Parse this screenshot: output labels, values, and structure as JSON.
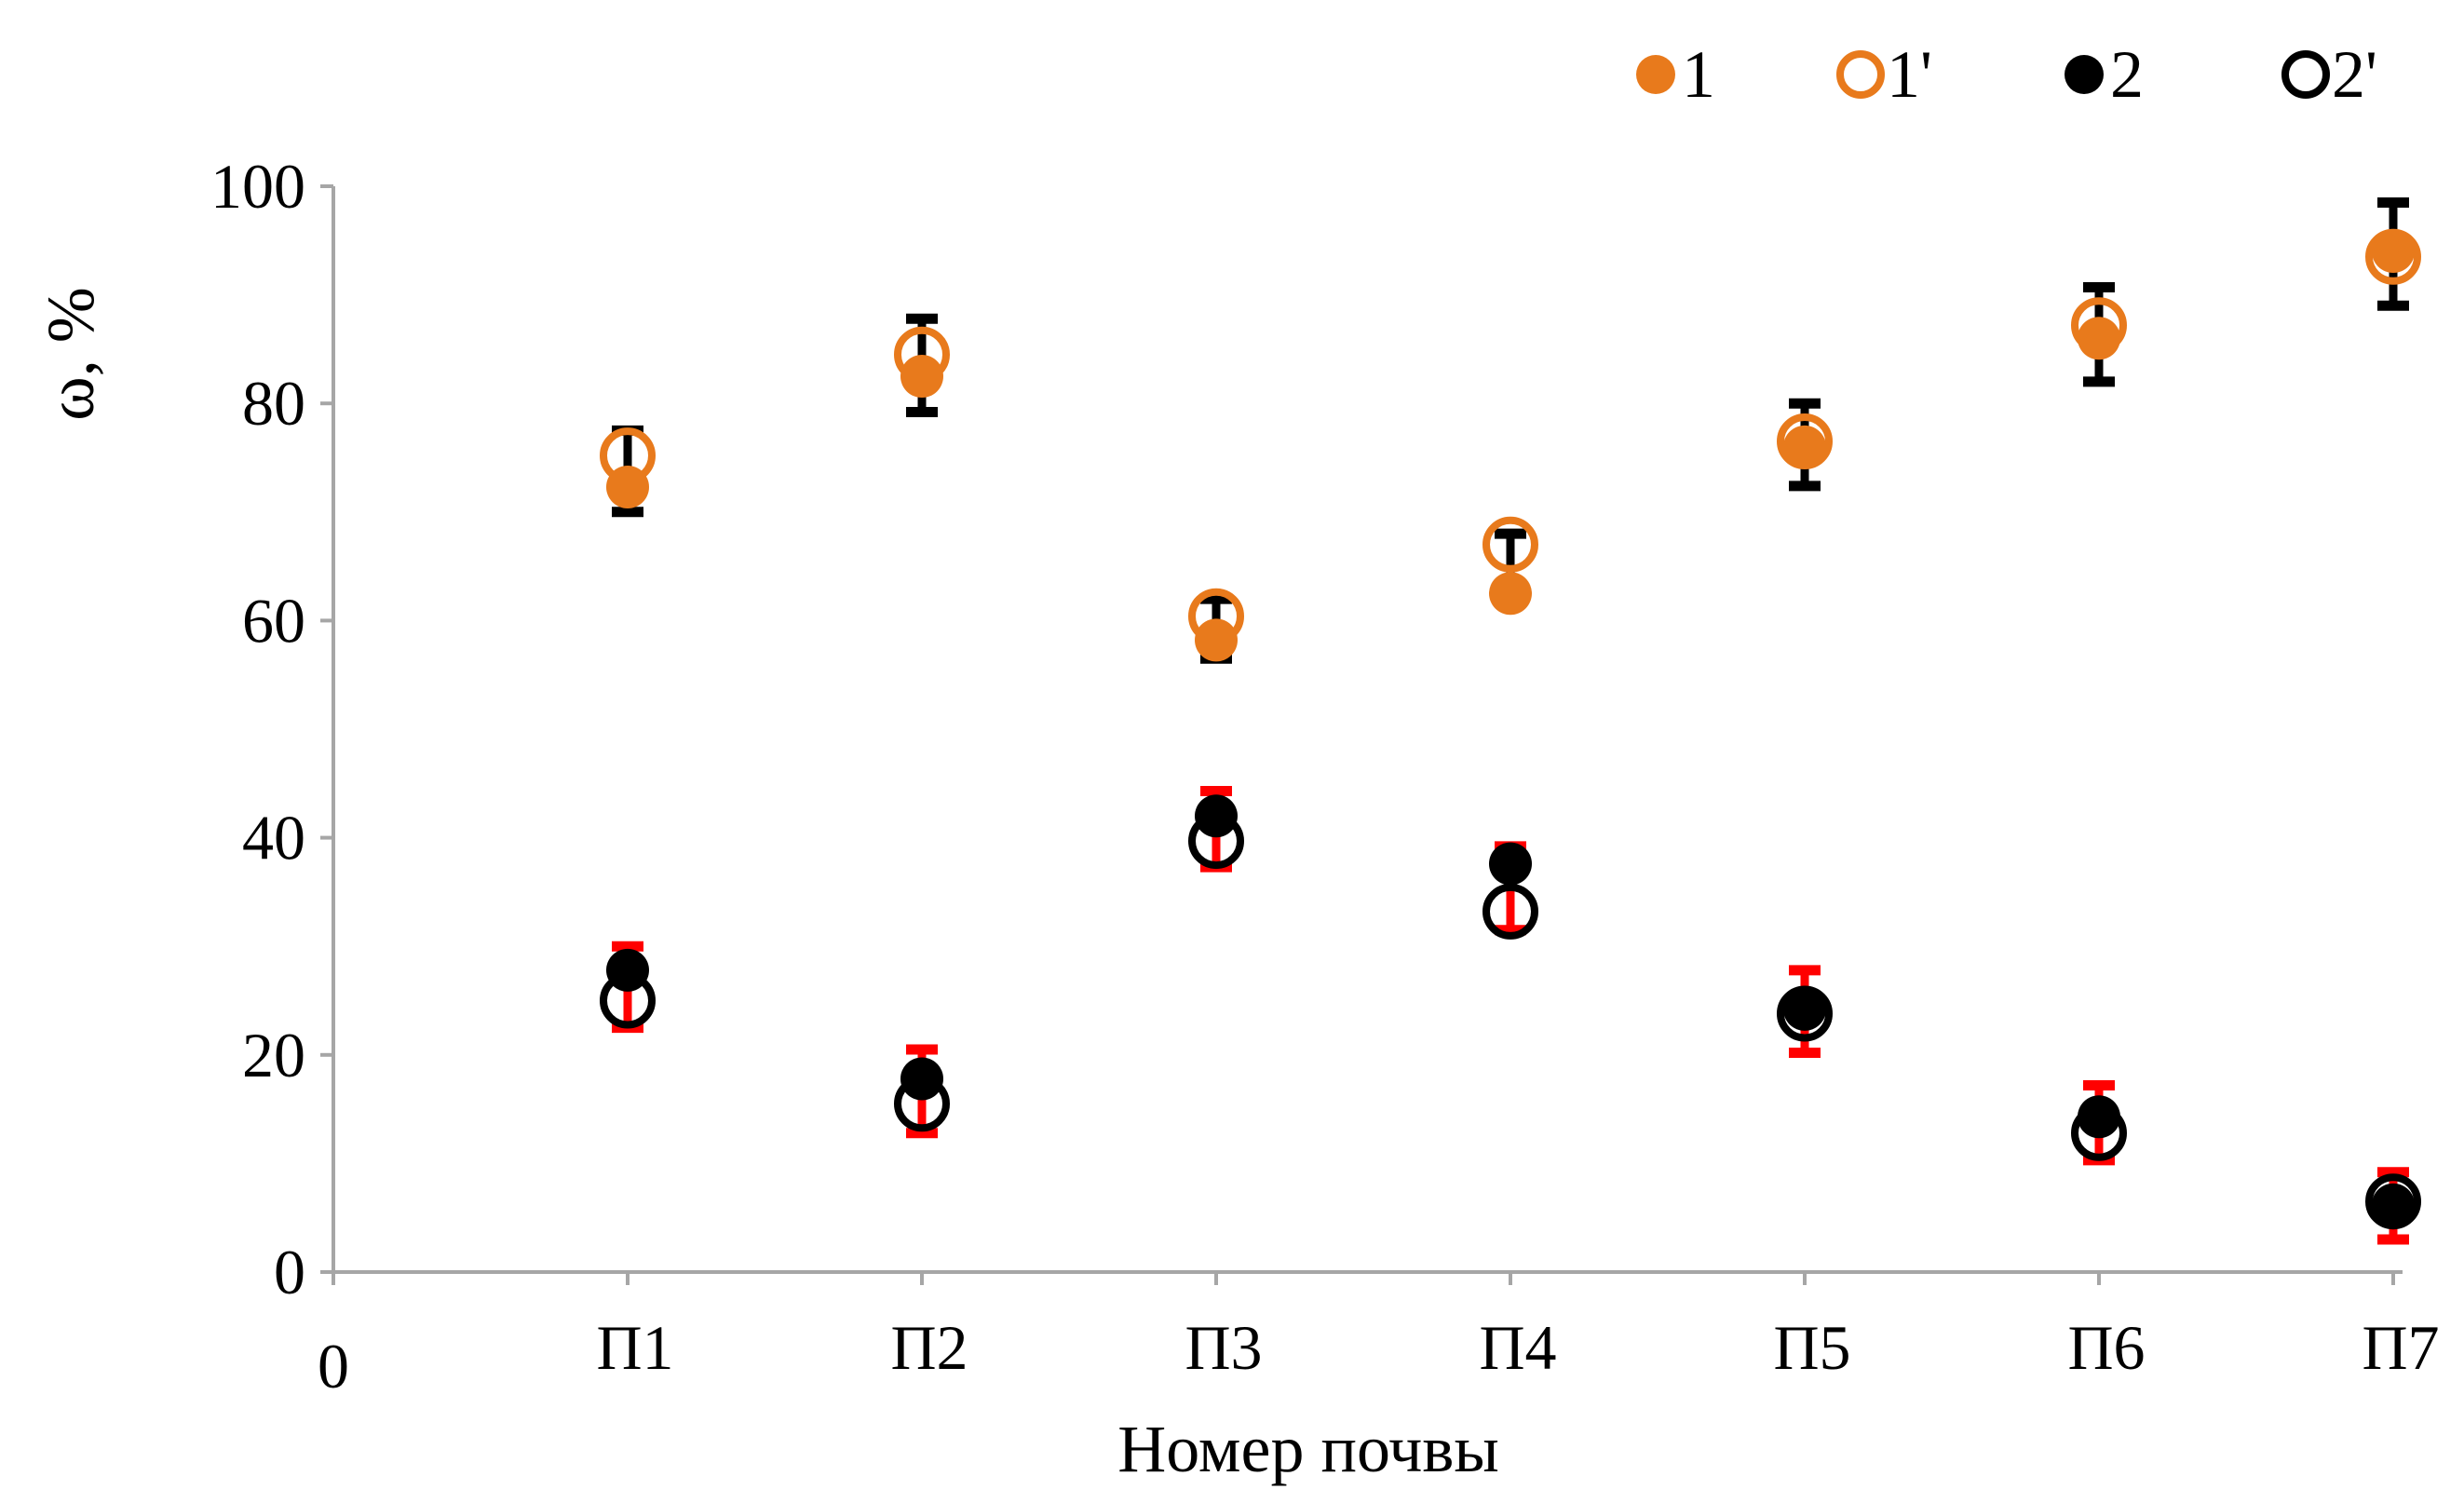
{
  "chart_data": {
    "type": "scatter",
    "title": "",
    "xlabel": "Номер почвы",
    "ylabel": "ω, %",
    "ylim": [
      0,
      100
    ],
    "yticks": [
      0,
      20,
      40,
      60,
      80,
      100
    ],
    "x_origin_label": "0",
    "categories": [
      "П1",
      "П2",
      "П3",
      "П4",
      "П5",
      "П6",
      "П7"
    ],
    "grid": false,
    "legend_position": "top-right",
    "colors": {
      "orange": "#E87A1C",
      "black": "#000000",
      "red": "#FF0000",
      "axis": "#A6A6A6"
    },
    "series": [
      {
        "name": "1",
        "marker": "filled",
        "color": "#E87A1C",
        "values": [
          72.3,
          82.5,
          58.2,
          62.5,
          76.0,
          86.0,
          94.0
        ]
      },
      {
        "name": "1'",
        "marker": "open",
        "color": "#E87A1C",
        "values": [
          75.2,
          84.5,
          60.4,
          67.0,
          76.5,
          87.2,
          93.5
        ]
      },
      {
        "name": "2",
        "marker": "filled",
        "color": "#000000",
        "values": [
          27.8,
          17.8,
          42.0,
          37.6,
          24.2,
          14.3,
          6.2
        ]
      },
      {
        "name": "2'",
        "marker": "open",
        "color": "#000000",
        "values": [
          25.0,
          15.5,
          39.7,
          33.2,
          23.8,
          12.8,
          6.5
        ]
      }
    ],
    "error_bars": [
      {
        "color": "#000000",
        "ranges": [
          [
            70.0,
            77.5
          ],
          [
            79.2,
            87.8
          ],
          [
            56.5,
            62.0
          ],
          [
            62.0,
            68.0
          ],
          [
            72.4,
            80.0
          ],
          [
            82.0,
            90.7
          ],
          [
            89.0,
            98.5
          ]
        ]
      },
      {
        "color": "#FF0000",
        "ranges": [
          [
            22.5,
            30.0
          ],
          [
            12.8,
            20.5
          ],
          [
            37.3,
            44.3
          ],
          [
            31.5,
            39.2
          ],
          [
            20.2,
            27.8
          ],
          [
            10.3,
            17.2
          ],
          [
            3.0,
            9.2
          ]
        ]
      }
    ]
  }
}
